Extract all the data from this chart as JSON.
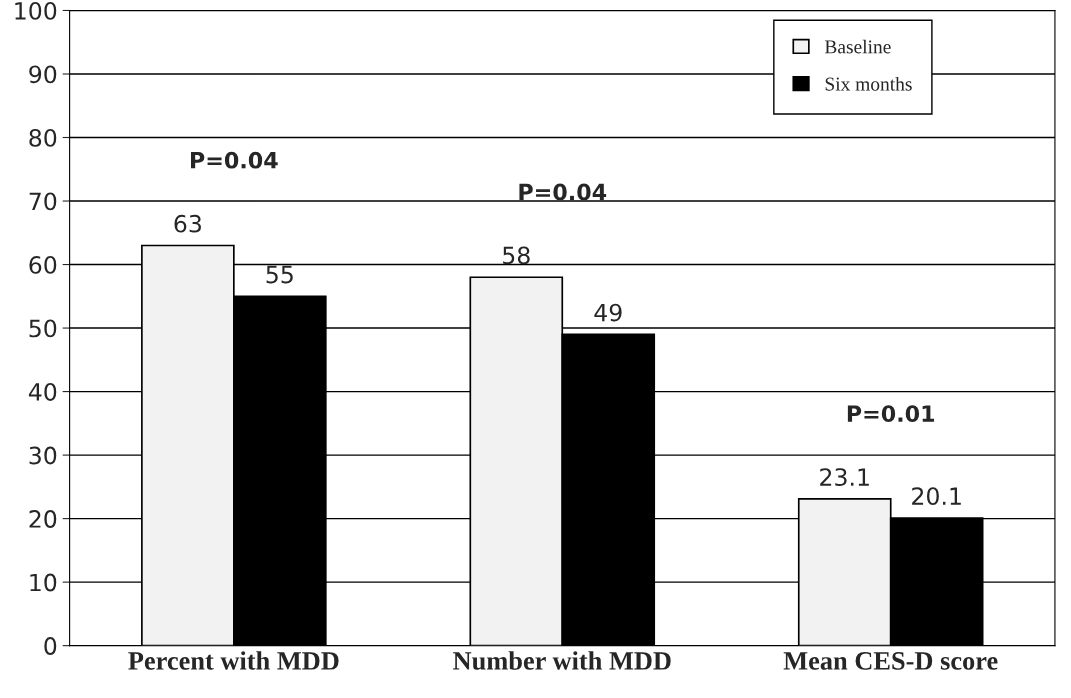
{
  "chart_data": {
    "type": "bar",
    "categories": [
      "Percent with MDD",
      "Number with MDD",
      "Mean CES-D score"
    ],
    "series": [
      {
        "name": "Baseline",
        "color": "#f2f2f2",
        "values": [
          63,
          58,
          23.1
        ]
      },
      {
        "name": "Six months",
        "color": "#000000",
        "values": [
          55,
          49,
          20.1
        ]
      }
    ],
    "ylim": [
      0,
      100
    ],
    "yticks": [
      0,
      10,
      20,
      30,
      40,
      50,
      60,
      70,
      80,
      90,
      100
    ],
    "grid": "y",
    "legend": "top right",
    "data_labels": true,
    "annotations": [
      "P=0.04",
      "P=0.04",
      "P=0.01"
    ]
  }
}
